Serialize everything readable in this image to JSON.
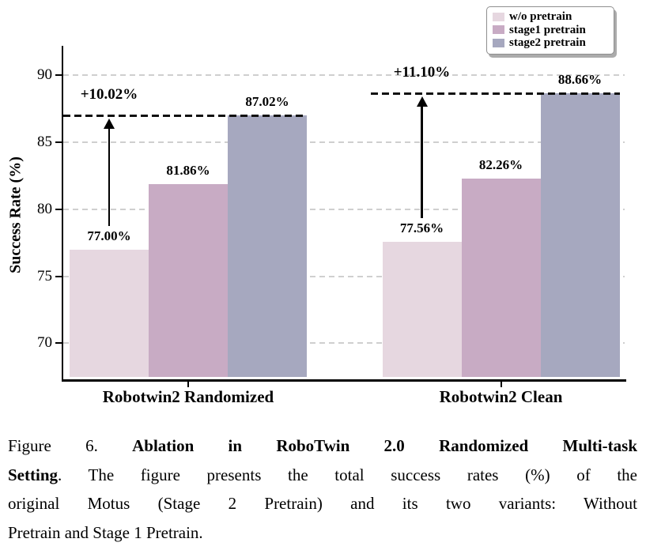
{
  "chart_data": {
    "type": "bar",
    "title": "",
    "categories": [
      "Robotwin2 Randomized",
      "Robotwin2 Clean"
    ],
    "series": [
      {
        "name": "w/o pretrain",
        "color": "#e6d7e0",
        "values": [
          77.0,
          77.56
        ],
        "labels": [
          "77.00%",
          "77.56%"
        ]
      },
      {
        "name": "stage1 pretrain",
        "color": "#c8abc4",
        "values": [
          81.86,
          82.26
        ],
        "labels": [
          "81.86%",
          "82.26%"
        ]
      },
      {
        "name": "stage2 pretrain",
        "color": "#a6a8bf",
        "values": [
          87.02,
          88.66
        ],
        "labels": [
          "87.02%",
          "88.66%"
        ]
      }
    ],
    "xlabel": "",
    "ylabel": "Success Rate (%)",
    "yticks": [
      70,
      75,
      80,
      85,
      90
    ],
    "ylim": [
      67.3,
      92.2
    ],
    "grid": "horizontal-dashed",
    "legend_position": "upper-right",
    "annotations": [
      {
        "label": "+10.02%",
        "category_index": 0,
        "line_value": 87.02,
        "arrow_from_value": 77.0
      },
      {
        "label": "+11.10%",
        "category_index": 1,
        "line_value": 88.66,
        "arrow_from_value": 77.56
      }
    ]
  },
  "caption": {
    "lines": [
      {
        "justify": true,
        "segments": [
          {
            "text": "Figure 6. ",
            "bold": false
          },
          {
            "text": "Ablation in RoboTwin 2.0 Randomized Multi-task",
            "bold": true
          }
        ]
      },
      {
        "justify": true,
        "segments": [
          {
            "text": "Setting",
            "bold": true
          },
          {
            "text": ". The figure presents the total success rates (%) of the",
            "bold": false
          }
        ]
      },
      {
        "justify": true,
        "segments": [
          {
            "text": "original Motus (Stage 2 Pretrain) and its two variants: Without",
            "bold": false
          }
        ]
      },
      {
        "justify": false,
        "segments": [
          {
            "text": "Pretrain and Stage 1 Pretrain.",
            "bold": false
          }
        ]
      }
    ]
  }
}
